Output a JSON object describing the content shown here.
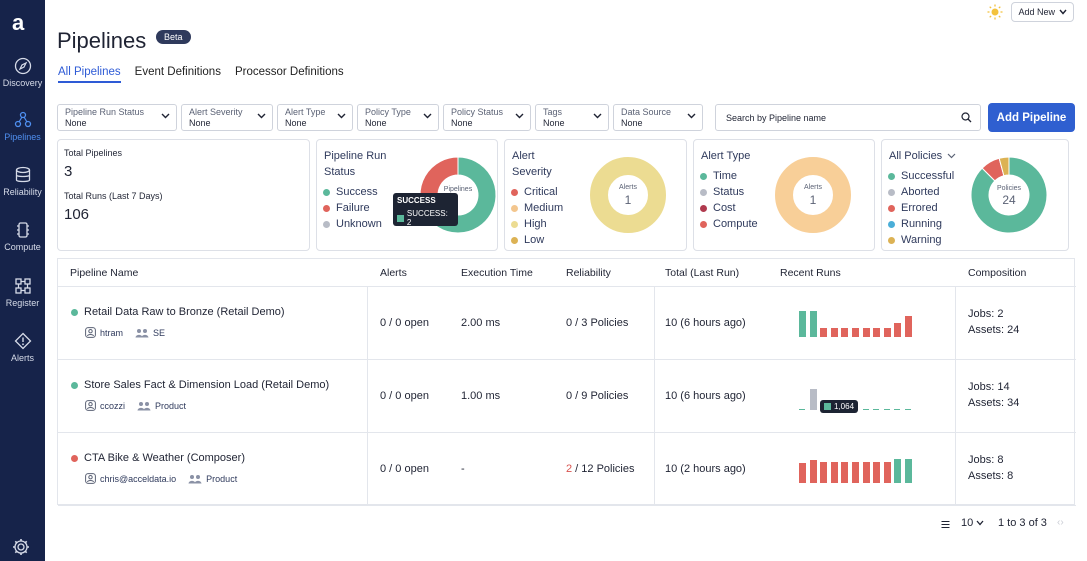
{
  "sidebar": {
    "logo": "a",
    "items": [
      {
        "label": "Discovery",
        "icon": "compass-icon"
      },
      {
        "label": "Pipelines",
        "icon": "pipeline-icon",
        "active": true
      },
      {
        "label": "Reliability",
        "icon": "database-icon"
      },
      {
        "label": "Compute",
        "icon": "cpu-icon"
      },
      {
        "label": "Register",
        "icon": "grid-icon"
      },
      {
        "label": "Alerts",
        "icon": "alert-diamond-icon"
      }
    ]
  },
  "header": {
    "title": "Pipelines",
    "badge": "Beta",
    "add_new": "Add New"
  },
  "tabs": [
    "All Pipelines",
    "Event Definitions",
    "Processor Definitions"
  ],
  "filters": [
    {
      "label": "Pipeline Run Status",
      "value": "None"
    },
    {
      "label": "Alert Severity",
      "value": "None"
    },
    {
      "label": "Alert Type",
      "value": "None"
    },
    {
      "label": "Policy Type",
      "value": "None"
    },
    {
      "label": "Policy Status",
      "value": "None"
    },
    {
      "label": "Tags",
      "value": "None"
    },
    {
      "label": "Data Source",
      "value": "None"
    }
  ],
  "search": {
    "placeholder": "Search by Pipeline name"
  },
  "add_pipeline": "Add Pipeline",
  "summary": {
    "total_pipelines_label": "Total Pipelines",
    "total_pipelines": "3",
    "total_runs_label": "Total Runs (Last 7 Days)",
    "total_runs": "106"
  },
  "cards": {
    "run_status": {
      "title_1": "Pipeline Run",
      "title_2": "Status",
      "center": "Pipelines",
      "legend": [
        {
          "label": "Success",
          "color": "#5bb89b"
        },
        {
          "label": "Failure",
          "color": "#e0645c"
        },
        {
          "label": "Unknown",
          "color": "#b8bcc6"
        }
      ],
      "slices": [
        {
          "value": 2,
          "color": "#5bb89b"
        },
        {
          "value": 1,
          "color": "#e0645c"
        }
      ],
      "tooltip": {
        "title": "SUCCESS",
        "row": "SUCCESS: 2"
      }
    },
    "alert_severity": {
      "title_1": "Alert",
      "title_2": "Severity",
      "center_label": "Alerts",
      "center_value": "1",
      "legend": [
        {
          "label": "Critical",
          "color": "#e0645c"
        },
        {
          "label": "Medium",
          "color": "#f3c68e"
        },
        {
          "label": "High",
          "color": "#ecdc92"
        },
        {
          "label": "Low",
          "color": "#dcb254"
        }
      ],
      "ring_color": "#ecdc92"
    },
    "alert_type": {
      "title": "Alert Type",
      "center_label": "Alerts",
      "center_value": "1",
      "legend": [
        {
          "label": "Time",
          "color": "#5bb89b"
        },
        {
          "label": "Status",
          "color": "#b8bcc6"
        },
        {
          "label": "Cost",
          "color": "#b03a4e"
        },
        {
          "label": "Compute",
          "color": "#e0645c"
        }
      ],
      "ring_color": "#f8cf98"
    },
    "policies": {
      "title": "All Policies",
      "center_label": "Policies",
      "center_value": "24",
      "legend": [
        {
          "label": "Successful",
          "color": "#5bb89b"
        },
        {
          "label": "Aborted",
          "color": "#b8bcc6"
        },
        {
          "label": "Errored",
          "color": "#e0645c"
        },
        {
          "label": "Running",
          "color": "#4aaed8"
        },
        {
          "label": "Warning",
          "color": "#dcb254"
        }
      ],
      "slices": [
        {
          "value": 21,
          "color": "#5bb89b"
        },
        {
          "value": 2,
          "color": "#e0645c"
        },
        {
          "value": 1,
          "color": "#dcb254"
        }
      ]
    }
  },
  "table": {
    "headers": [
      "Pipeline Name",
      "Alerts",
      "Execution Time",
      "Reliability",
      "Total (Last Run)",
      "Recent Runs",
      "Composition"
    ],
    "rows": [
      {
        "name": "Retail Data Raw to Bronze (Retail Demo)",
        "status_color": "#5bb89b",
        "owner": "htram",
        "team": "SE",
        "alerts": "0 / 0 open",
        "exec_time": "2.00 ms",
        "rel_failed": "",
        "rel_rest": "0 / 3 Policies",
        "total": "10 (6 hours ago)",
        "jobs": "Jobs: 2",
        "assets": "Assets: 24",
        "runs": [
          {
            "v": 0.85,
            "c": "#5bb89b"
          },
          {
            "v": 0.85,
            "c": "#5bb89b"
          },
          {
            "v": 0.3,
            "c": "#e0645c"
          },
          {
            "v": 0.3,
            "c": "#e0645c"
          },
          {
            "v": 0.3,
            "c": "#e0645c"
          },
          {
            "v": 0.3,
            "c": "#e0645c"
          },
          {
            "v": 0.3,
            "c": "#e0645c"
          },
          {
            "v": 0.3,
            "c": "#e0645c"
          },
          {
            "v": 0.3,
            "c": "#e0645c"
          },
          {
            "v": 0.45,
            "c": "#e0645c"
          },
          {
            "v": 0.7,
            "c": "#e0645c"
          }
        ]
      },
      {
        "name": "Store Sales Fact & Dimension Load (Retail Demo)",
        "status_color": "#5bb89b",
        "owner": "ccozzi",
        "team": "Product",
        "alerts": "0 / 0 open",
        "exec_time": "1.00 ms",
        "rel_failed": "",
        "rel_rest": "0 / 9 Policies",
        "total": "10 (6 hours ago)",
        "jobs": "Jobs: 14",
        "assets": "Assets: 34",
        "run_tip": "1,064",
        "runs": [
          {
            "v": 0.0,
            "c": "#5bb89b"
          },
          {
            "v": 0.7,
            "c": "#b8bcc6"
          },
          {
            "v": 0.0,
            "c": "#5bb89b"
          },
          {
            "v": 0.0,
            "c": "#5bb89b"
          },
          {
            "v": 0.0,
            "c": "#5bb89b"
          },
          {
            "v": 0.0,
            "c": "#5bb89b"
          },
          {
            "v": 0.0,
            "c": "#5bb89b"
          },
          {
            "v": 0.0,
            "c": "#5bb89b"
          },
          {
            "v": 0.0,
            "c": "#5bb89b"
          },
          {
            "v": 0.0,
            "c": "#5bb89b"
          },
          {
            "v": 0.0,
            "c": "#5bb89b"
          }
        ]
      },
      {
        "name": "CTA Bike & Weather (Composer)",
        "status_color": "#e0645c",
        "owner": "chris@acceldata.io",
        "team": "Product",
        "alerts": "0 / 0 open",
        "exec_time": "-",
        "rel_failed": "2",
        "rel_rest": " / 12 Policies",
        "total": "10 (2 hours ago)",
        "jobs": "Jobs: 8",
        "assets": "Assets: 8",
        "runs": [
          {
            "v": 0.65,
            "c": "#e0645c"
          },
          {
            "v": 0.75,
            "c": "#e0645c"
          },
          {
            "v": 0.7,
            "c": "#e0645c"
          },
          {
            "v": 0.7,
            "c": "#e0645c"
          },
          {
            "v": 0.7,
            "c": "#e0645c"
          },
          {
            "v": 0.7,
            "c": "#e0645c"
          },
          {
            "v": 0.7,
            "c": "#e0645c"
          },
          {
            "v": 0.7,
            "c": "#e0645c"
          },
          {
            "v": 0.7,
            "c": "#e0645c"
          },
          {
            "v": 0.8,
            "c": "#5bb89b"
          },
          {
            "v": 0.8,
            "c": "#5bb89b"
          }
        ]
      }
    ]
  },
  "pagination": {
    "page_size": "10",
    "range": "1 to 3 of 3"
  }
}
